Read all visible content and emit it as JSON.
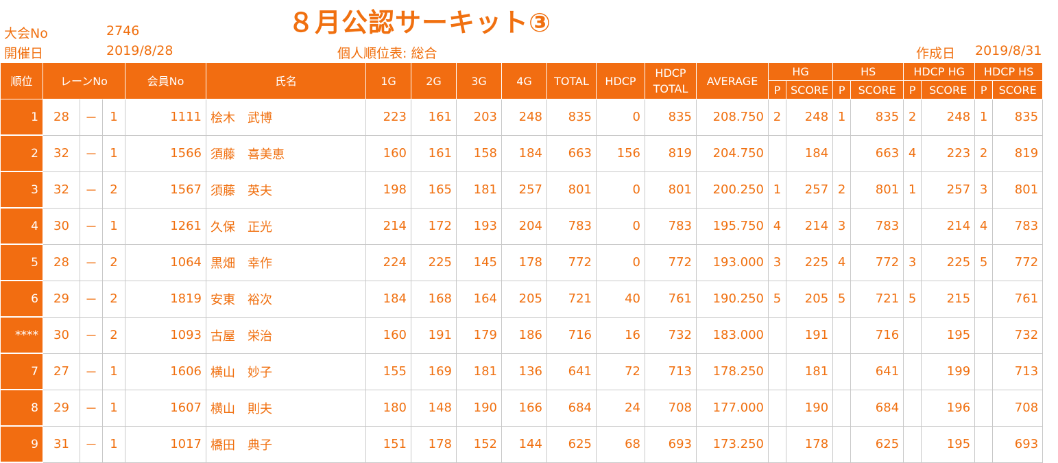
{
  "header": {
    "taikai_label": "大会No",
    "taikai_no": "2746",
    "kaisai_label": "開催日",
    "kaisai_date": "2019/8/28",
    "title": "８月公認サーキット③",
    "subtitle": "個人順位表: 総合",
    "sakusei_label": "作成日",
    "sakusei_date": "2019/8/31"
  },
  "columns": {
    "rank": "順位",
    "lane": "レーンNo",
    "member": "会員No",
    "name": "氏名",
    "g1": "1G",
    "g2": "2G",
    "g3": "3G",
    "g4": "4G",
    "total": "TOTAL",
    "hdcp": "HDCP",
    "hdcp_total_1": "HDCP",
    "hdcp_total_2": "TOTAL",
    "average": "AVERAGE",
    "hg": "HG",
    "hs": "HS",
    "hdcp_hg": "HDCP HG",
    "hdcp_hs": "HDCP HS",
    "p": "P",
    "score": "SCORE"
  },
  "rows": [
    {
      "rank": "1",
      "lane_a": "28",
      "dash": "－",
      "lane_b": "1",
      "member": "1111",
      "name": "桧木　武博",
      "g1": "223",
      "g2": "161",
      "g3": "203",
      "g4": "248",
      "total": "835",
      "hdcp": "0",
      "hdcp_total": "835",
      "average": "208.750",
      "hg_p": "2",
      "hg_score": "248",
      "hs_p": "1",
      "hs_score": "835",
      "hhg_p": "2",
      "hhg_score": "248",
      "hhs_p": "1",
      "hhs_score": "835"
    },
    {
      "rank": "2",
      "lane_a": "32",
      "dash": "－",
      "lane_b": "1",
      "member": "1566",
      "name": "須藤　喜美恵",
      "g1": "160",
      "g2": "161",
      "g3": "158",
      "g4": "184",
      "total": "663",
      "hdcp": "156",
      "hdcp_total": "819",
      "average": "204.750",
      "hg_p": "",
      "hg_score": "184",
      "hs_p": "",
      "hs_score": "663",
      "hhg_p": "4",
      "hhg_score": "223",
      "hhs_p": "2",
      "hhs_score": "819"
    },
    {
      "rank": "3",
      "lane_a": "32",
      "dash": "－",
      "lane_b": "2",
      "member": "1567",
      "name": "須藤　英夫",
      "g1": "198",
      "g2": "165",
      "g3": "181",
      "g4": "257",
      "total": "801",
      "hdcp": "0",
      "hdcp_total": "801",
      "average": "200.250",
      "hg_p": "1",
      "hg_score": "257",
      "hs_p": "2",
      "hs_score": "801",
      "hhg_p": "1",
      "hhg_score": "257",
      "hhs_p": "3",
      "hhs_score": "801"
    },
    {
      "rank": "4",
      "lane_a": "30",
      "dash": "－",
      "lane_b": "1",
      "member": "1261",
      "name": "久保　正光",
      "g1": "214",
      "g2": "172",
      "g3": "193",
      "g4": "204",
      "total": "783",
      "hdcp": "0",
      "hdcp_total": "783",
      "average": "195.750",
      "hg_p": "4",
      "hg_score": "214",
      "hs_p": "3",
      "hs_score": "783",
      "hhg_p": "",
      "hhg_score": "214",
      "hhs_p": "4",
      "hhs_score": "783"
    },
    {
      "rank": "5",
      "lane_a": "28",
      "dash": "－",
      "lane_b": "2",
      "member": "1064",
      "name": "黒畑　幸作",
      "g1": "224",
      "g2": "225",
      "g3": "145",
      "g4": "178",
      "total": "772",
      "hdcp": "0",
      "hdcp_total": "772",
      "average": "193.000",
      "hg_p": "3",
      "hg_score": "225",
      "hs_p": "4",
      "hs_score": "772",
      "hhg_p": "3",
      "hhg_score": "225",
      "hhs_p": "5",
      "hhs_score": "772"
    },
    {
      "rank": "6",
      "lane_a": "29",
      "dash": "－",
      "lane_b": "2",
      "member": "1819",
      "name": "安東　裕次",
      "g1": "184",
      "g2": "168",
      "g3": "164",
      "g4": "205",
      "total": "721",
      "hdcp": "40",
      "hdcp_total": "761",
      "average": "190.250",
      "hg_p": "5",
      "hg_score": "205",
      "hs_p": "5",
      "hs_score": "721",
      "hhg_p": "5",
      "hhg_score": "215",
      "hhs_p": "",
      "hhs_score": "761"
    },
    {
      "rank": "****",
      "lane_a": "30",
      "dash": "－",
      "lane_b": "2",
      "member": "1093",
      "name": "古屋　栄治",
      "g1": "160",
      "g2": "191",
      "g3": "179",
      "g4": "186",
      "total": "716",
      "hdcp": "16",
      "hdcp_total": "732",
      "average": "183.000",
      "hg_p": "",
      "hg_score": "191",
      "hs_p": "",
      "hs_score": "716",
      "hhg_p": "",
      "hhg_score": "195",
      "hhs_p": "",
      "hhs_score": "732"
    },
    {
      "rank": "7",
      "lane_a": "27",
      "dash": "－",
      "lane_b": "1",
      "member": "1606",
      "name": "横山　妙子",
      "g1": "155",
      "g2": "169",
      "g3": "181",
      "g4": "136",
      "total": "641",
      "hdcp": "72",
      "hdcp_total": "713",
      "average": "178.250",
      "hg_p": "",
      "hg_score": "181",
      "hs_p": "",
      "hs_score": "641",
      "hhg_p": "",
      "hhg_score": "199",
      "hhs_p": "",
      "hhs_score": "713"
    },
    {
      "rank": "8",
      "lane_a": "29",
      "dash": "－",
      "lane_b": "1",
      "member": "1607",
      "name": "横山　則夫",
      "g1": "180",
      "g2": "148",
      "g3": "190",
      "g4": "166",
      "total": "684",
      "hdcp": "24",
      "hdcp_total": "708",
      "average": "177.000",
      "hg_p": "",
      "hg_score": "190",
      "hs_p": "",
      "hs_score": "684",
      "hhg_p": "",
      "hhg_score": "196",
      "hhs_p": "",
      "hhs_score": "708"
    },
    {
      "rank": "9",
      "lane_a": "31",
      "dash": "－",
      "lane_b": "1",
      "member": "1017",
      "name": "橋田　典子",
      "g1": "151",
      "g2": "178",
      "g3": "152",
      "g4": "144",
      "total": "625",
      "hdcp": "68",
      "hdcp_total": "693",
      "average": "173.250",
      "hg_p": "",
      "hg_score": "178",
      "hs_p": "",
      "hs_score": "625",
      "hhg_p": "",
      "hhg_score": "195",
      "hhs_p": "",
      "hhs_score": "693"
    }
  ]
}
